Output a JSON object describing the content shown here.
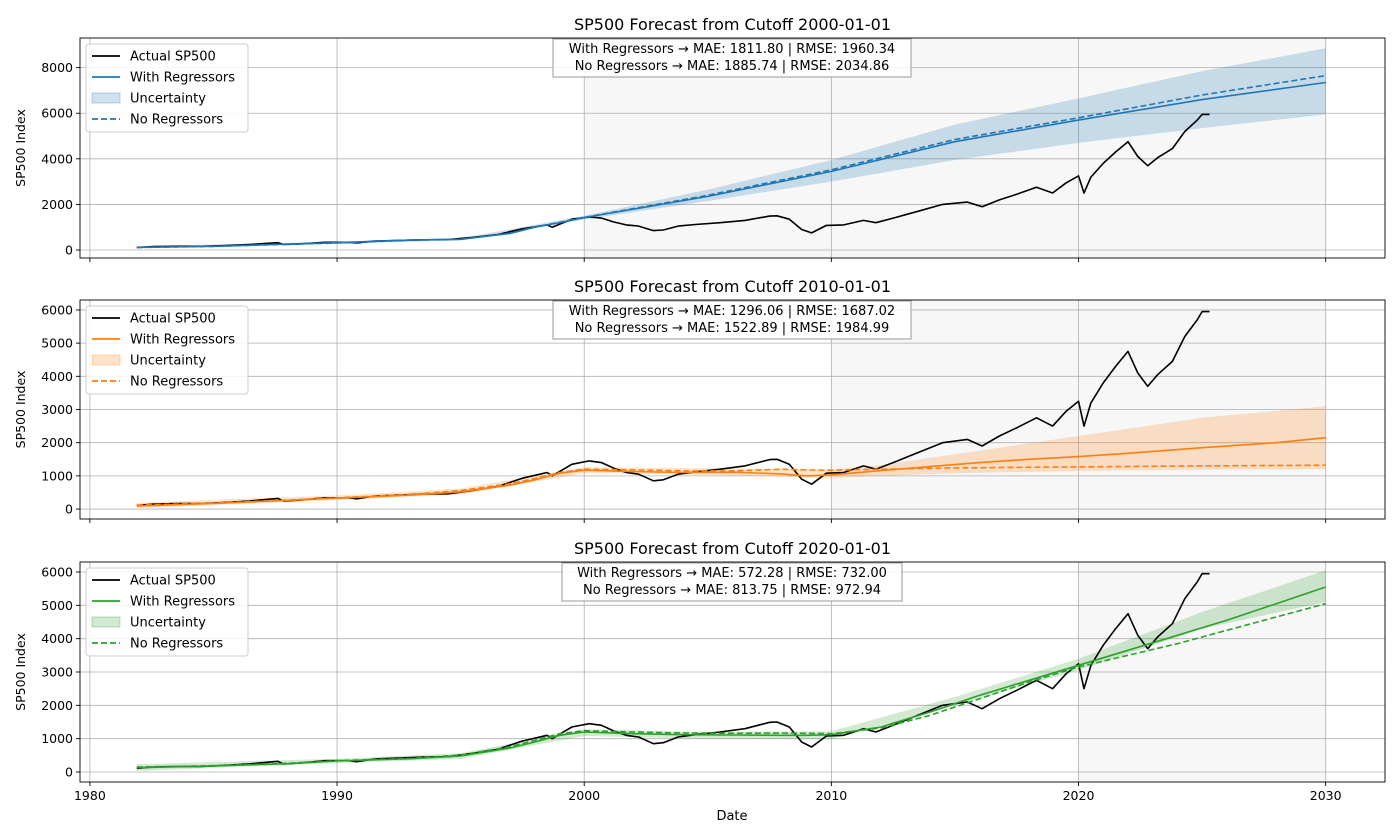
{
  "figure": {
    "xlabel": "Date"
  },
  "legend_labels": {
    "actual": "Actual SP500",
    "with": "With Regressors",
    "uncertainty": "Uncertainty",
    "without": "No Regressors"
  },
  "chart_data": [
    {
      "type": "line",
      "title": "SP500 Forecast from Cutoff 2000-01-01",
      "xlabel": "",
      "ylabel": "SP500 Index",
      "cutoff_year": 2000,
      "xlim": [
        1979.6,
        2032.4
      ],
      "ylim": [
        -350,
        9300
      ],
      "yticks": [
        0,
        2000,
        4000,
        6000,
        8000
      ],
      "xticks": [
        1980,
        1990,
        2000,
        2010,
        2020,
        2030
      ],
      "grid": true,
      "legend_position": "top-left",
      "color": "#1f77b4",
      "metrics": [
        "With Regressors → MAE: 1811.80 | RMSE: 1960.34",
        "No Regressors   → MAE: 1885.74 | RMSE: 2034.86"
      ],
      "series": [
        {
          "name": "With Regressors",
          "style": "solid",
          "x": [
            1981.9,
            1985,
            1988,
            1990,
            1993,
            1995,
            1997,
            1998,
            1999,
            2000,
            2005,
            2010,
            2015,
            2020,
            2025,
            2030
          ],
          "y": [
            120,
            165,
            260,
            320,
            440,
            470,
            730,
            1000,
            1200,
            1420,
            2350,
            3450,
            4750,
            5700,
            6600,
            7350
          ]
        },
        {
          "name": "No Regressors",
          "style": "dashed",
          "x": [
            1981.9,
            1985,
            1988,
            1990,
            1993,
            1995,
            1997,
            1998,
            1999,
            2000,
            2005,
            2010,
            2015,
            2020,
            2025,
            2030
          ],
          "y": [
            110,
            160,
            250,
            310,
            430,
            470,
            740,
            1010,
            1210,
            1430,
            2400,
            3520,
            4850,
            5800,
            6800,
            7650
          ]
        }
      ],
      "band": {
        "name": "Uncertainty",
        "x": [
          1981.9,
          1990,
          1995,
          2000,
          2005,
          2010,
          2015,
          2020,
          2025,
          2030
        ],
        "lower": [
          80,
          270,
          420,
          1340,
          2150,
          3000,
          3950,
          4700,
          5350,
          5950
        ],
        "upper": [
          170,
          370,
          520,
          1500,
          2650,
          3950,
          5500,
          6650,
          7850,
          8850
        ]
      }
    },
    {
      "type": "line",
      "title": "SP500 Forecast from Cutoff 2010-01-01",
      "xlabel": "",
      "ylabel": "SP500 Index",
      "cutoff_year": 2010,
      "xlim": [
        1979.6,
        2032.4
      ],
      "ylim": [
        -300,
        6300
      ],
      "yticks": [
        0,
        1000,
        2000,
        3000,
        4000,
        5000,
        6000
      ],
      "xticks": [
        1980,
        1990,
        2000,
        2010,
        2020,
        2030
      ],
      "grid": true,
      "legend_position": "top-left",
      "color": "#ff7f0e",
      "metrics": [
        "With Regressors → MAE: 1296.06 | RMSE: 1687.02",
        "No Regressors   → MAE: 1522.89 | RMSE: 1984.99"
      ],
      "series": [
        {
          "name": "With Regressors",
          "style": "solid",
          "x": [
            1981.9,
            1985,
            1988,
            1990,
            1993,
            1995,
            1997,
            1998,
            1999,
            2000,
            2002,
            2004,
            2006,
            2008,
            2009,
            2010,
            2012,
            2014,
            2016,
            2018,
            2020,
            2022,
            2025,
            2028,
            2030
          ],
          "y": [
            90,
            170,
            260,
            330,
            420,
            520,
            720,
            880,
            1080,
            1170,
            1130,
            1100,
            1110,
            1060,
            1000,
            1030,
            1160,
            1280,
            1400,
            1500,
            1580,
            1680,
            1850,
            2000,
            2150
          ]
        },
        {
          "name": "No Regressors",
          "style": "dashed",
          "x": [
            1981.9,
            1985,
            1988,
            1990,
            1993,
            1995,
            1997,
            1998,
            1999,
            2000,
            2002,
            2004,
            2006,
            2008,
            2009,
            2010,
            2012,
            2015,
            2020,
            2025,
            2030
          ],
          "y": [
            120,
            180,
            270,
            340,
            440,
            560,
            760,
            920,
            1100,
            1200,
            1180,
            1150,
            1150,
            1200,
            1180,
            1170,
            1200,
            1240,
            1270,
            1300,
            1320
          ]
        }
      ],
      "band": {
        "name": "Uncertainty",
        "x": [
          1981.9,
          1990,
          1995,
          2000,
          2005,
          2010,
          2012,
          2015,
          2020,
          2025,
          2030
        ],
        "lower": [
          30,
          270,
          440,
          1080,
          1030,
          940,
          1000,
          1080,
          1150,
          1190,
          1200
        ],
        "upper": [
          190,
          410,
          620,
          1260,
          1230,
          1180,
          1330,
          1650,
          2200,
          2750,
          3100
        ]
      }
    },
    {
      "type": "line",
      "title": "SP500 Forecast from Cutoff 2020-01-01",
      "xlabel": "Date",
      "ylabel": "SP500 Index",
      "cutoff_year": 2020,
      "xlim": [
        1979.6,
        2032.4
      ],
      "ylim": [
        -300,
        6300
      ],
      "yticks": [
        0,
        1000,
        2000,
        3000,
        4000,
        5000,
        6000
      ],
      "xticks": [
        1980,
        1990,
        2000,
        2010,
        2020,
        2030
      ],
      "grid": true,
      "legend_position": "top-left",
      "color": "#2ca02c",
      "metrics": [
        "With Regressors → MAE: 572.28 | RMSE: 732.00",
        "No Regressors   → MAE: 813.75 | RMSE: 972.94"
      ],
      "series": [
        {
          "name": "With Regressors",
          "style": "solid",
          "x": [
            1981.9,
            1985,
            1988,
            1990,
            1993,
            1995,
            1997,
            1998,
            1999,
            2000,
            2002,
            2004,
            2006,
            2008,
            2009,
            2010,
            2012,
            2014,
            2016,
            2018,
            2020,
            2022,
            2024,
            2026,
            2028,
            2030
          ],
          "y": [
            130,
            180,
            250,
            330,
            400,
            480,
            720,
            900,
            1100,
            1200,
            1150,
            1120,
            1110,
            1100,
            1100,
            1120,
            1350,
            1800,
            2300,
            2750,
            3200,
            3650,
            4100,
            4550,
            5050,
            5550
          ]
        },
        {
          "name": "No Regressors",
          "style": "dashed",
          "x": [
            1981.9,
            1985,
            1988,
            1990,
            1993,
            1995,
            1997,
            1998,
            1999,
            2000,
            2002,
            2004,
            2006,
            2008,
            2009,
            2010,
            2012,
            2014,
            2016,
            2018,
            2020,
            2022,
            2024,
            2026,
            2028,
            2030
          ],
          "y": [
            150,
            190,
            260,
            340,
            410,
            510,
            760,
            950,
            1150,
            1240,
            1200,
            1170,
            1160,
            1170,
            1160,
            1150,
            1320,
            1700,
            2200,
            2700,
            3150,
            3500,
            3850,
            4250,
            4650,
            5050
          ]
        }
      ],
      "band": {
        "name": "Uncertainty",
        "x": [
          1981.9,
          1990,
          1995,
          2000,
          2005,
          2010,
          2015,
          2020,
          2025,
          2030
        ],
        "lower": [
          30,
          270,
          390,
          1080,
          1000,
          980,
          2000,
          3050,
          4300,
          5100
        ],
        "upper": [
          230,
          400,
          560,
          1280,
          1200,
          1220,
          2250,
          3400,
          4800,
          6050
        ]
      }
    }
  ],
  "actual_sp500": {
    "name": "Actual SP500",
    "x": [
      1981.9,
      1982.6,
      1983.5,
      1984.5,
      1985.5,
      1986.5,
      1987.6,
      1987.85,
      1988.5,
      1989.5,
      1990.5,
      1990.8,
      1991.5,
      1992.5,
      1993.5,
      1994.5,
      1995.5,
      1996.5,
      1997.5,
      1998.5,
      1998.7,
      1999.5,
      2000.2,
      2000.7,
      2001.2,
      2001.7,
      2002.2,
      2002.8,
      2003.2,
      2003.8,
      2004.5,
      2005.5,
      2006.5,
      2007.5,
      2007.8,
      2008.3,
      2008.8,
      2009.2,
      2009.8,
      2010.5,
      2011.3,
      2011.8,
      2012.5,
      2013.5,
      2014.5,
      2015.5,
      2016.1,
      2016.8,
      2017.5,
      2018.3,
      2018.95,
      2019.5,
      2020.0,
      2020.22,
      2020.5,
      2021.0,
      2021.5,
      2022.0,
      2022.4,
      2022.8,
      2023.2,
      2023.8,
      2024.3,
      2024.8,
      2025.0,
      2025.3
    ],
    "y": [
      110,
      150,
      165,
      165,
      200,
      245,
      320,
      240,
      270,
      340,
      340,
      310,
      390,
      420,
      450,
      460,
      560,
      680,
      930,
      1100,
      1000,
      1350,
      1450,
      1400,
      1230,
      1100,
      1050,
      850,
      880,
      1050,
      1120,
      1200,
      1300,
      1490,
      1500,
      1350,
      900,
      750,
      1080,
      1100,
      1300,
      1200,
      1400,
      1700,
      2000,
      2100,
      1900,
      2200,
      2450,
      2750,
      2500,
      2950,
      3250,
      2500,
      3200,
      3800,
      4300,
      4750,
      4100,
      3700,
      4050,
      4450,
      5200,
      5700,
      5950,
      5950
    ]
  }
}
